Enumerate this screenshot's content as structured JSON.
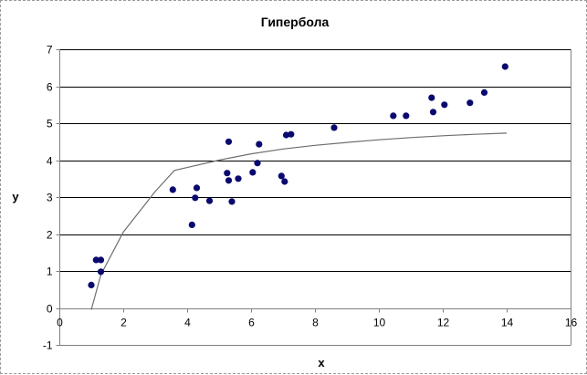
{
  "chart_data": {
    "type": "scatter",
    "title": "Гипербола",
    "xlabel": "x",
    "ylabel": "y",
    "xlim": [
      0,
      16
    ],
    "ylim": [
      -1,
      7
    ],
    "x_ticks": [
      0,
      2,
      4,
      6,
      8,
      10,
      12,
      14,
      16
    ],
    "y_ticks": [
      -1,
      0,
      1,
      2,
      3,
      4,
      5,
      6,
      7
    ],
    "grid": "horizontal",
    "legend": "none",
    "colors": {
      "points": "#0a0a6e",
      "curve": "#6e6e6e",
      "grid": "#000000",
      "axis": "#808080"
    },
    "series": [
      {
        "kind": "points",
        "x": [
          1.0,
          1.15,
          1.3,
          1.3,
          3.55,
          4.15,
          4.25,
          4.3,
          4.7,
          5.25,
          5.3,
          5.3,
          5.4,
          5.6,
          6.05,
          6.2,
          6.25,
          6.95,
          7.05,
          7.1,
          7.25,
          8.6,
          10.45,
          10.85,
          11.65,
          11.7,
          12.05,
          12.85,
          13.3,
          13.95
        ],
        "y": [
          0.62,
          1.3,
          1.3,
          0.98,
          3.2,
          2.25,
          2.98,
          3.25,
          2.9,
          3.65,
          3.45,
          4.5,
          2.88,
          3.5,
          3.67,
          3.92,
          4.43,
          3.57,
          3.42,
          4.68,
          4.7,
          4.88,
          5.2,
          5.2,
          5.69,
          5.3,
          5.5,
          5.55,
          5.83,
          6.53
        ]
      },
      {
        "kind": "line",
        "x": [
          1.0,
          1.3,
          2.0,
          3.0,
          3.6,
          4.0,
          5.0,
          6.0,
          7.0,
          8.0,
          9.0,
          10.0,
          11.0,
          12.0,
          13.0,
          14.0
        ],
        "y": [
          -0.05,
          0.9,
          2.05,
          3.15,
          3.72,
          3.8,
          4.0,
          4.17,
          4.3,
          4.4,
          4.48,
          4.55,
          4.61,
          4.66,
          4.7,
          4.73
        ]
      }
    ]
  }
}
